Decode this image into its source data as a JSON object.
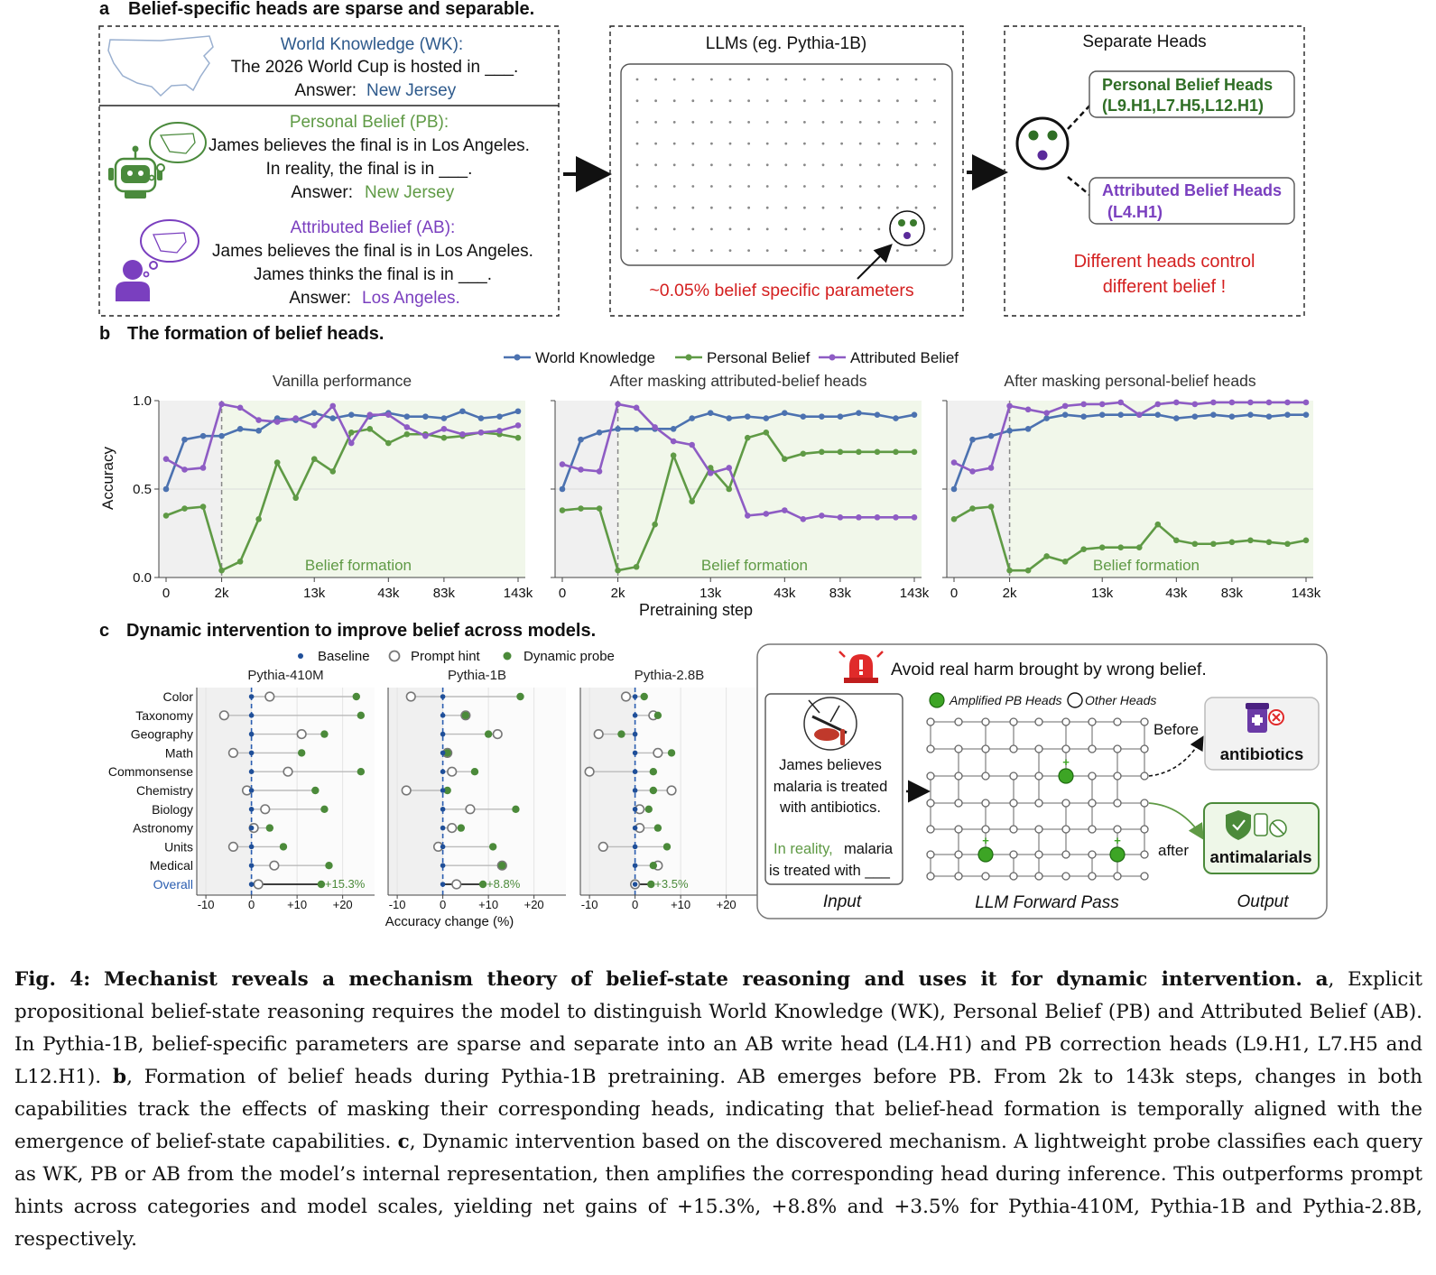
{
  "panel_a": {
    "label": "a",
    "title": "Belief-specific heads are sparse and separable.",
    "wk": {
      "heading": "World Knowledge (WK):",
      "question": "The 2026 World Cup is hosted in ___.",
      "answer_label": "Answer:",
      "answer": "New Jersey"
    },
    "pb": {
      "heading": "Personal Belief (PB):",
      "line1": "James believes the final is in Los Angeles.",
      "line2": "In reality, the final is in ___.",
      "answer_label": "Answer:",
      "answer": "New Jersey"
    },
    "ab": {
      "heading": "Attributed Belief (AB):",
      "line1": "James believes the final is in Los Angeles.",
      "line2": "James thinks the final is in ___.",
      "answer_label": "Answer:",
      "answer": "Los Angeles."
    },
    "llm_title": "LLMs (eg. Pythia-1B)",
    "llm_note": "~0.05% belief specific parameters",
    "sep_title": "Separate Heads",
    "pb_heads_title": "Personal Belief Heads",
    "pb_heads": "(L9.H1,L7.H5,L12.H1)",
    "ab_heads_title": "Attributed Belief Heads",
    "ab_heads": "(L4.H1)",
    "conclusion1": "Different heads control",
    "conclusion2": "different belief !"
  },
  "panel_b": {
    "label": "b",
    "title": "The formation of belief heads.",
    "legend": [
      "World Knowledge",
      "Personal Belief",
      "Attributed Belief"
    ],
    "colors": {
      "wk": "#4c72b0",
      "pb": "#5f9a45",
      "ab": "#8e5cc4"
    },
    "region_label": "Belief formation",
    "xlabel": "Pretraining step",
    "ylabel": "Accuracy"
  },
  "chart_data": [
    {
      "type": "line",
      "title": "Vanilla performance",
      "x_tick_labels": [
        "0",
        "2k",
        "13k",
        "43k",
        "83k",
        "143k"
      ],
      "x_tick_index": [
        0,
        3,
        8,
        12,
        15,
        19
      ],
      "ylim": [
        0,
        1
      ],
      "y_ticks": [
        "0.0",
        "0.5",
        "1.0"
      ],
      "series": [
        {
          "name": "World Knowledge",
          "values": [
            0.5,
            0.78,
            0.8,
            0.8,
            0.84,
            0.83,
            0.9,
            0.89,
            0.93,
            0.9,
            0.92,
            0.91,
            0.93,
            0.91,
            0.91,
            0.9,
            0.94,
            0.9,
            0.91,
            0.94
          ]
        },
        {
          "name": "Personal Belief",
          "values": [
            0.35,
            0.39,
            0.4,
            0.04,
            0.09,
            0.33,
            0.65,
            0.45,
            0.67,
            0.6,
            0.82,
            0.84,
            0.76,
            0.81,
            0.81,
            0.79,
            0.8,
            0.82,
            0.81,
            0.79
          ]
        },
        {
          "name": "Attributed Belief",
          "values": [
            0.67,
            0.61,
            0.62,
            0.98,
            0.96,
            0.89,
            0.88,
            0.9,
            0.86,
            0.97,
            0.76,
            0.92,
            0.92,
            0.85,
            0.8,
            0.84,
            0.81,
            0.82,
            0.83,
            0.86
          ]
        }
      ]
    },
    {
      "type": "line",
      "title": "After masking attributed-belief heads",
      "x_tick_labels": [
        "0",
        "2k",
        "13k",
        "43k",
        "83k",
        "143k"
      ],
      "x_tick_index": [
        0,
        3,
        8,
        12,
        15,
        19
      ],
      "ylim": [
        0,
        1
      ],
      "y_ticks": [
        "0.0",
        "0.5",
        "1.0"
      ],
      "series": [
        {
          "name": "World Knowledge",
          "values": [
            0.5,
            0.78,
            0.82,
            0.84,
            0.84,
            0.84,
            0.84,
            0.9,
            0.93,
            0.9,
            0.91,
            0.9,
            0.93,
            0.91,
            0.91,
            0.91,
            0.93,
            0.92,
            0.9,
            0.92
          ]
        },
        {
          "name": "Personal Belief",
          "values": [
            0.38,
            0.39,
            0.39,
            0.04,
            0.06,
            0.3,
            0.69,
            0.43,
            0.62,
            0.5,
            0.79,
            0.82,
            0.67,
            0.7,
            0.71,
            0.71,
            0.71,
            0.71,
            0.71,
            0.71
          ]
        },
        {
          "name": "Attributed Belief",
          "values": [
            0.64,
            0.61,
            0.6,
            0.98,
            0.96,
            0.85,
            0.77,
            0.75,
            0.59,
            0.62,
            0.35,
            0.36,
            0.38,
            0.33,
            0.35,
            0.34,
            0.34,
            0.34,
            0.34,
            0.34
          ]
        }
      ]
    },
    {
      "type": "line",
      "title": "After masking personal-belief heads",
      "x_tick_labels": [
        "0",
        "2k",
        "13k",
        "43k",
        "83k",
        "143k"
      ],
      "x_tick_index": [
        0,
        3,
        8,
        12,
        15,
        19
      ],
      "ylim": [
        0,
        1
      ],
      "y_ticks": [
        "0.0",
        "0.5",
        "1.0"
      ],
      "series": [
        {
          "name": "World Knowledge",
          "values": [
            0.5,
            0.78,
            0.8,
            0.83,
            0.84,
            0.9,
            0.92,
            0.91,
            0.92,
            0.92,
            0.92,
            0.92,
            0.9,
            0.91,
            0.92,
            0.91,
            0.92,
            0.91,
            0.92,
            0.92
          ]
        },
        {
          "name": "Personal Belief",
          "values": [
            0.33,
            0.39,
            0.4,
            0.04,
            0.04,
            0.12,
            0.09,
            0.16,
            0.17,
            0.17,
            0.17,
            0.3,
            0.21,
            0.19,
            0.19,
            0.2,
            0.21,
            0.2,
            0.19,
            0.21
          ]
        },
        {
          "name": "Attributed Belief",
          "values": [
            0.65,
            0.6,
            0.62,
            0.97,
            0.95,
            0.93,
            0.97,
            0.98,
            0.98,
            0.99,
            0.92,
            0.98,
            0.99,
            0.98,
            0.99,
            0.99,
            0.99,
            0.99,
            0.99,
            0.99
          ]
        }
      ]
    },
    {
      "type": "scatter",
      "title": "Pythia-410M",
      "categories": [
        "Color",
        "Taxonomy",
        "Geography",
        "Math",
        "Commonsense",
        "Chemistry",
        "Biology",
        "Astronomy",
        "Units",
        "Medical",
        "Overall"
      ],
      "series": [
        {
          "name": "Baseline",
          "values": [
            0,
            0,
            0,
            0,
            0,
            0,
            0,
            0,
            0,
            0,
            0
          ]
        },
        {
          "name": "Prompt hint",
          "values": [
            4,
            -6,
            11,
            -4,
            8,
            -1,
            3,
            0.5,
            -4,
            5,
            1.5
          ]
        },
        {
          "name": "Dynamic probe",
          "values": [
            23,
            24,
            16,
            11,
            24,
            14,
            16,
            4,
            7,
            17,
            15.3
          ]
        }
      ],
      "overall_label": "+15.3%",
      "xlim": [
        -12,
        27
      ],
      "x_ticks": [
        "-10",
        "0",
        "+10",
        "+20"
      ]
    },
    {
      "type": "scatter",
      "title": "Pythia-1B",
      "categories": [
        "Color",
        "Taxonomy",
        "Geography",
        "Math",
        "Commonsense",
        "Chemistry",
        "Biology",
        "Astronomy",
        "Units",
        "Medical",
        "Overall"
      ],
      "series": [
        {
          "name": "Baseline",
          "values": [
            0,
            0,
            0,
            0,
            0,
            0,
            0,
            0,
            0,
            0,
            0
          ]
        },
        {
          "name": "Prompt hint",
          "values": [
            -7,
            5,
            12,
            1,
            2,
            -8,
            6,
            2,
            -1,
            13,
            3
          ]
        },
        {
          "name": "Dynamic probe",
          "values": [
            17,
            5,
            10,
            1,
            7,
            1,
            16,
            4,
            11,
            13,
            8.8
          ]
        }
      ],
      "overall_label": "+8.8%",
      "xlim": [
        -12,
        27
      ],
      "x_ticks": [
        "-10",
        "0",
        "+10",
        "+20"
      ]
    },
    {
      "type": "scatter",
      "title": "Pythia-2.8B",
      "categories": [
        "Color",
        "Taxonomy",
        "Geography",
        "Math",
        "Commonsense",
        "Chemistry",
        "Biology",
        "Astronomy",
        "Units",
        "Medical",
        "Overall"
      ],
      "series": [
        {
          "name": "Baseline",
          "values": [
            0,
            0,
            0,
            0,
            0,
            0,
            0,
            0,
            0,
            0,
            0
          ]
        },
        {
          "name": "Prompt hint",
          "values": [
            -2,
            4,
            -8,
            5,
            -10,
            8,
            1,
            1,
            -7,
            5,
            0
          ]
        },
        {
          "name": "Dynamic probe",
          "values": [
            2,
            5,
            -3,
            8,
            4,
            4,
            3,
            5,
            7,
            4,
            3.5
          ]
        }
      ],
      "overall_label": "+3.5%",
      "xlim": [
        -12,
        27
      ],
      "x_ticks": [
        "-10",
        "0",
        "+10",
        "+20"
      ]
    }
  ],
  "panel_c": {
    "label": "c",
    "title": "Dynamic intervention to improve belief across models.",
    "legend": [
      "Baseline",
      "Prompt hint",
      "Dynamic probe"
    ],
    "xlabel": "Accuracy change (%)",
    "harm_title": "Avoid real harm brought by wrong belief.",
    "input_line1": "James believes",
    "input_line2": "malaria is treated",
    "input_line3": "with antibiotics.",
    "reality_word": "In reality,",
    "reality_rest": " malaria",
    "reality_line2": "is treated with ___",
    "legend_amp": "Amplified PB Heads",
    "legend_other": "Other Heads",
    "before": "Before",
    "after": "after",
    "out_wrong": "antibiotics",
    "out_right": "antimalarials",
    "lbl_input": "Input",
    "lbl_forward": "LLM Forward Pass",
    "lbl_output": "Output"
  },
  "caption": {
    "fig": "Fig. 4:",
    "bold": "Mechanist reveals a mechanism theory of belief-state reasoning and uses it for dynamic intervention.",
    "a": "a",
    "text_a": ", Explicit propositional belief-state reasoning requires the model to distinguish World Knowledge (WK), Personal Belief (PB) and Attributed Belief (AB). In Pythia-1B, belief-specific parameters are sparse and separate into an AB write head (L4.H1) and PB correction heads (L9.H1, L7.H5 and L12.H1).",
    "b": "b",
    "text_b": ", Formation of belief heads during Pythia-1B pretraining. AB emerges before PB. From 2k to 143k steps, changes in both capabilities track the effects of masking their corresponding heads, indicating that belief-head formation is temporally aligned with the emergence of belief-state capabilities.",
    "c": "c",
    "text_c": ", Dynamic intervention based on the discovered mechanism. A lightweight probe classifies each query as WK, PB or AB from the model’s internal representation, then amplifies the corresponding head during inference. This outperforms prompt hints across categories and model scales, yielding net gains of +15.3%, +8.8% and +3.5% for Pythia-410M, Pythia-1B and Pythia-2.8B, respectively."
  }
}
